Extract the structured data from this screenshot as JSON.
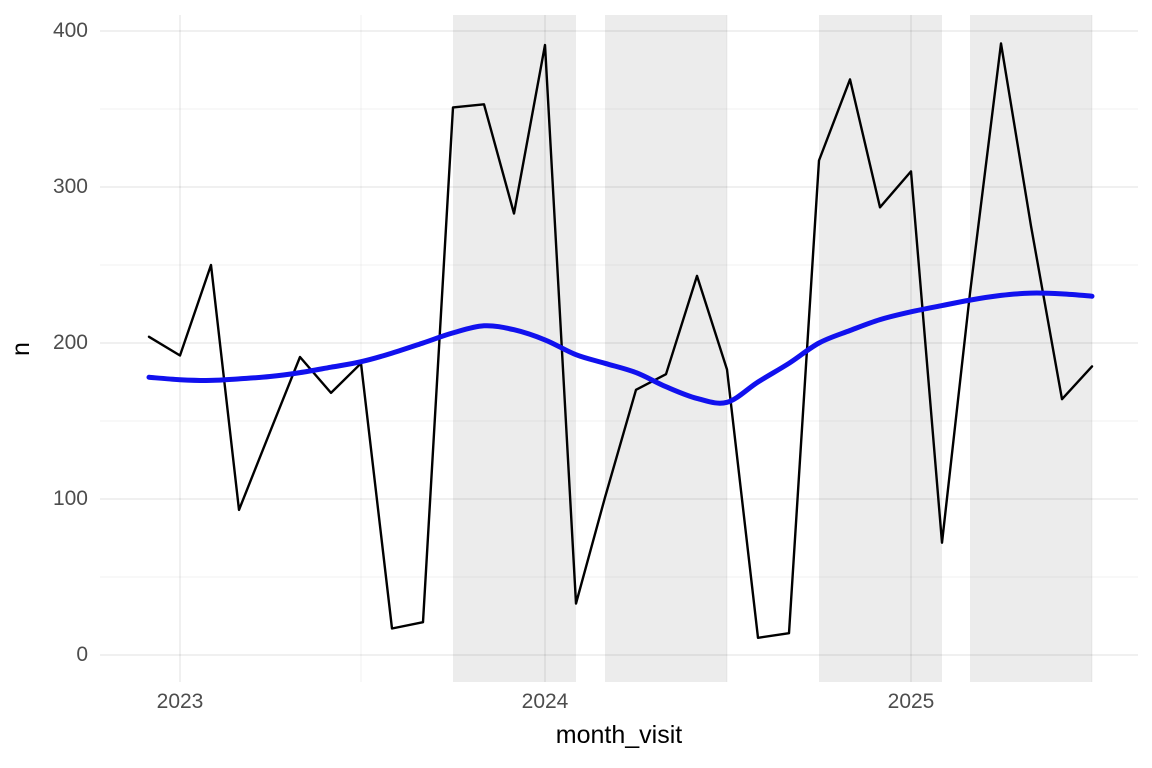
{
  "chart_data": {
    "type": "line",
    "title": "",
    "xlabel": "month_visit",
    "ylabel": "n",
    "x_axis": {
      "tick_labels": [
        "2023",
        "2024",
        "2025"
      ],
      "tick_positions": [
        "2023-01",
        "2024-01",
        "2025-01"
      ],
      "minor_tick_positions": [
        "2023-07",
        "2024-07",
        "2025-07"
      ]
    },
    "y_axis": {
      "tick_labels": [
        "0",
        "100",
        "200",
        "300",
        "400"
      ],
      "tick_values": [
        0,
        100,
        200,
        300,
        400
      ],
      "minor_tick_values": [
        50,
        150,
        250,
        350
      ],
      "ylim": [
        -17,
        410
      ]
    },
    "months": [
      "2022-12",
      "2023-01",
      "2023-02",
      "2023-03",
      "2023-04",
      "2023-05",
      "2023-06",
      "2023-07",
      "2023-08",
      "2023-09",
      "2023-10",
      "2023-11",
      "2023-12",
      "2024-01",
      "2024-02",
      "2024-03",
      "2024-04",
      "2024-05",
      "2024-06",
      "2024-07",
      "2024-08",
      "2024-09",
      "2024-10",
      "2024-11",
      "2024-12",
      "2025-01",
      "2025-02",
      "2025-03",
      "2025-04",
      "2025-05",
      "2025-06",
      "2025-07"
    ],
    "series": [
      {
        "name": "monthly_count",
        "style": "jagged-line",
        "color": "#000000",
        "width": 2.4,
        "values": [
          204,
          192,
          250,
          93,
          143,
          191,
          168,
          187,
          17,
          21,
          351,
          353,
          283,
          391,
          33,
          101,
          170,
          180,
          243,
          183,
          11,
          14,
          317,
          369,
          287,
          310,
          72,
          232,
          392,
          275,
          164,
          185
        ]
      },
      {
        "name": "loess_smooth",
        "style": "smooth-line",
        "color": "#1111ee",
        "width": 5,
        "values": [
          178,
          176.5,
          176,
          177,
          178.5,
          181,
          184.5,
          188,
          193.5,
          200,
          206.5,
          211,
          208.5,
          202,
          192.5,
          187,
          181,
          172,
          164.5,
          162,
          175,
          187,
          200,
          208,
          215,
          220,
          224,
          227.5,
          230.5,
          232,
          231.5,
          230
        ]
      }
    ],
    "shaded_bands": {
      "fill": "#ececec",
      "ranges": [
        {
          "from": "2023-10",
          "to": "2024-02"
        },
        {
          "from": "2024-03",
          "to": "2024-07"
        },
        {
          "from": "2024-10",
          "to": "2025-02"
        },
        {
          "from": "2025-03",
          "to": "2025-07"
        }
      ]
    },
    "grid": {
      "major_color": "rgba(0,0,0,0.08)",
      "minor_color": "rgba(0,0,0,0.045)",
      "background": "#ffffff"
    },
    "legend": "none"
  }
}
